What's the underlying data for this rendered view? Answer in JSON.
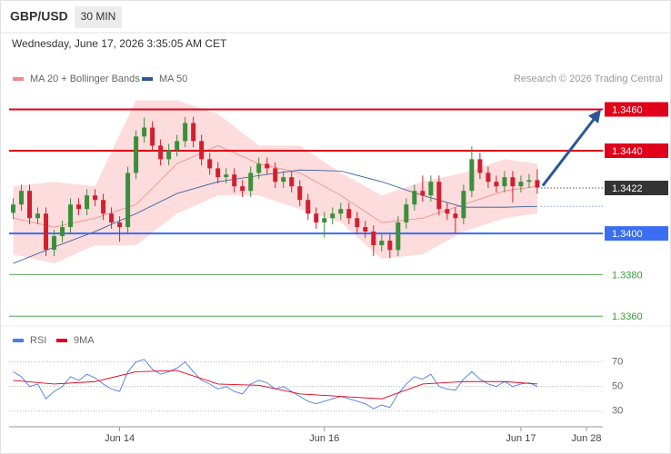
{
  "chart_data": {
    "type": "candlestick",
    "symbol": "GBP/USD",
    "interval": "30 MIN",
    "timestamp": "Wednesday, June 17, 2026 3:35:05 AM CET",
    "credit": "Research © 2026 Trading Central",
    "xlim": [
      -0.5,
      72
    ],
    "xticks": [
      {
        "value": 13,
        "label": "Jun 14"
      },
      {
        "value": 38,
        "label": "Jun 16"
      },
      {
        "value": 62,
        "label": "Jun 17"
      },
      {
        "value": 70,
        "label": "Jun 28"
      }
    ],
    "price": {
      "ylim": [
        1.3357,
        1.3469
      ],
      "up_color": "#3b8f3b",
      "down_color": "#d02030",
      "legend": [
        {
          "label": "MA 20 + Bollinger Bands",
          "color": "#f08a8a"
        },
        {
          "label": "MA 50",
          "color": "#2b5797"
        }
      ],
      "band_color": "#fcdcdc",
      "candles": {
        "open": [
          1.341,
          1.3414,
          1.34206,
          1.34074,
          1.34096,
          1.33921,
          1.33987,
          1.34031,
          1.3414,
          1.34118,
          1.34184,
          1.34162,
          1.34096,
          1.34053,
          1.34031,
          1.34293,
          1.34469,
          1.34512,
          1.34425,
          1.34359,
          1.34403,
          1.34447,
          1.34534,
          1.34447,
          1.34359,
          1.34315,
          1.34272,
          1.34285,
          1.34228,
          1.34206,
          1.34293,
          1.34337,
          1.34315,
          1.3425,
          1.34272,
          1.34228,
          1.34162,
          1.34096,
          1.34053,
          1.34074,
          1.34096,
          1.34118,
          1.34074,
          1.34031,
          1.34009,
          1.33943,
          1.33965,
          1.3392,
          1.34053,
          1.3414,
          1.34206,
          1.34184,
          1.3425,
          1.34118,
          1.34096,
          1.34074,
          1.34206,
          1.34359,
          1.34293,
          1.3425,
          1.34228,
          1.34272,
          1.34228,
          1.3425,
          1.34258
        ],
        "high": [
          1.3417,
          1.34236,
          1.34236,
          1.34126,
          1.34126,
          1.34017,
          1.34061,
          1.3417,
          1.3417,
          1.34214,
          1.34214,
          1.34192,
          1.34126,
          1.34083,
          1.34323,
          1.34499,
          1.3456,
          1.34542,
          1.34455,
          1.34433,
          1.34477,
          1.34564,
          1.34564,
          1.34477,
          1.34389,
          1.34345,
          1.34315,
          1.34315,
          1.34258,
          1.34323,
          1.34367,
          1.34367,
          1.34345,
          1.34302,
          1.34302,
          1.34258,
          1.34192,
          1.34126,
          1.34104,
          1.34126,
          1.34148,
          1.34148,
          1.34104,
          1.34061,
          1.34039,
          1.33995,
          1.33995,
          1.34083,
          1.3417,
          1.34236,
          1.3428,
          1.3428,
          1.3428,
          1.34148,
          1.34126,
          1.34236,
          1.3442,
          1.34389,
          1.34323,
          1.3428,
          1.34302,
          1.34302,
          1.3428,
          1.34288,
          1.3431
        ],
        "low": [
          1.3407,
          1.3411,
          1.34044,
          1.34044,
          1.33891,
          1.33891,
          1.33957,
          1.34001,
          1.34088,
          1.34088,
          1.34132,
          1.34066,
          1.34023,
          1.3396,
          1.34001,
          1.34263,
          1.34439,
          1.34395,
          1.34329,
          1.34329,
          1.34373,
          1.34417,
          1.34417,
          1.34329,
          1.34285,
          1.34242,
          1.34242,
          1.34198,
          1.34176,
          1.34176,
          1.34263,
          1.34285,
          1.3422,
          1.3422,
          1.34198,
          1.34132,
          1.34066,
          1.34023,
          1.3398,
          1.34044,
          1.34066,
          1.34044,
          1.34001,
          1.33979,
          1.3389,
          1.33913,
          1.3388,
          1.3389,
          1.34023,
          1.3411,
          1.34154,
          1.34154,
          1.34088,
          1.34066,
          1.34,
          1.34044,
          1.34176,
          1.34263,
          1.3422,
          1.34198,
          1.34198,
          1.3415,
          1.34198,
          1.3422,
          1.34192
        ],
        "close": [
          1.3414,
          1.34206,
          1.34074,
          1.34096,
          1.33921,
          1.33987,
          1.34031,
          1.3414,
          1.34118,
          1.34184,
          1.34162,
          1.34096,
          1.34053,
          1.34031,
          1.34293,
          1.34469,
          1.34512,
          1.34425,
          1.34359,
          1.34403,
          1.34447,
          1.34534,
          1.34447,
          1.34359,
          1.34315,
          1.34272,
          1.34285,
          1.34228,
          1.34206,
          1.34293,
          1.34337,
          1.34315,
          1.3425,
          1.34272,
          1.34228,
          1.34162,
          1.34096,
          1.34053,
          1.34074,
          1.34096,
          1.34118,
          1.34074,
          1.34031,
          1.34009,
          1.33943,
          1.33965,
          1.3392,
          1.34053,
          1.3414,
          1.34206,
          1.34184,
          1.3425,
          1.34118,
          1.34096,
          1.34074,
          1.34206,
          1.34359,
          1.34293,
          1.3425,
          1.34228,
          1.34272,
          1.34228,
          1.3425,
          1.34258,
          1.34222
        ]
      },
      "indicators": {
        "x": [
          0,
          5,
          10,
          15,
          20,
          25,
          30,
          35,
          40,
          45,
          50,
          55,
          60,
          64
        ],
        "ma20": [
          1.34074,
          1.34031,
          1.34074,
          1.3414,
          1.34337,
          1.34425,
          1.34337,
          1.34293,
          1.34184,
          1.34053,
          1.34074,
          1.3414,
          1.34206,
          1.34228
        ],
        "upper": [
          1.34228,
          1.3425,
          1.34228,
          1.34644,
          1.34644,
          1.34578,
          1.34425,
          1.34425,
          1.34293,
          1.34184,
          1.3425,
          1.34293,
          1.34359,
          1.34337
        ],
        "lower": [
          1.33899,
          1.33855,
          1.33943,
          1.33943,
          1.34096,
          1.34184,
          1.34184,
          1.34118,
          1.34053,
          1.33877,
          1.33899,
          1.34009,
          1.34074,
          1.34096
        ],
        "ma50": [
          1.33855,
          1.33934,
          1.34009,
          1.34096,
          1.34193,
          1.3425,
          1.3428,
          1.34307,
          1.34302,
          1.3425,
          1.34184,
          1.34127,
          1.34127,
          1.34131
        ]
      },
      "levels": [
        {
          "value": 1.346,
          "label": "1.3460",
          "color": "#e0001a",
          "line": "solid",
          "boxed": true
        },
        {
          "value": 1.344,
          "label": "1.3440",
          "color": "#e0001a",
          "line": "solid",
          "boxed": true
        },
        {
          "value": 1.3422,
          "label": "1.3422",
          "color": "#333333",
          "line": "dotted",
          "boxed": true
        },
        {
          "value": 1.34,
          "label": "1.3400",
          "color": "#3b6ef0",
          "line": "solid",
          "boxed": true
        },
        {
          "value": 1.338,
          "label": "1.3380",
          "color": "#3a9a3a",
          "line": "thin",
          "boxed": false
        },
        {
          "value": 1.336,
          "label": "1.3360",
          "color": "#3a9a3a",
          "line": "thin",
          "boxed": false
        }
      ],
      "forecast_color": "#2b5797"
    },
    "rsi": {
      "ylim": [
        21,
        80
      ],
      "yticks": [
        70,
        50,
        30
      ],
      "legend": [
        {
          "label": "RSI",
          "color": "#4a7fe0"
        },
        {
          "label": "9MA",
          "color": "#e0001a"
        }
      ],
      "values": [
        62,
        58,
        50,
        52,
        40,
        46,
        50,
        58,
        55,
        60,
        57,
        52,
        48,
        46,
        62,
        70,
        72,
        64,
        60,
        62,
        65,
        70,
        62,
        55,
        52,
        48,
        50,
        46,
        44,
        52,
        55,
        53,
        48,
        50,
        46,
        42,
        38,
        36,
        38,
        40,
        42,
        40,
        38,
        36,
        32,
        35,
        33,
        44,
        52,
        58,
        56,
        60,
        50,
        48,
        47,
        56,
        62,
        56,
        52,
        50,
        54,
        50,
        52,
        53,
        50
      ],
      "ma_x": [
        0,
        5,
        10,
        15,
        20,
        25,
        30,
        35,
        40,
        45,
        50,
        55,
        60,
        64
      ],
      "ma_values": [
        55,
        52,
        54,
        62,
        63,
        52,
        51,
        44,
        42,
        40,
        52,
        54,
        54,
        52
      ]
    }
  }
}
